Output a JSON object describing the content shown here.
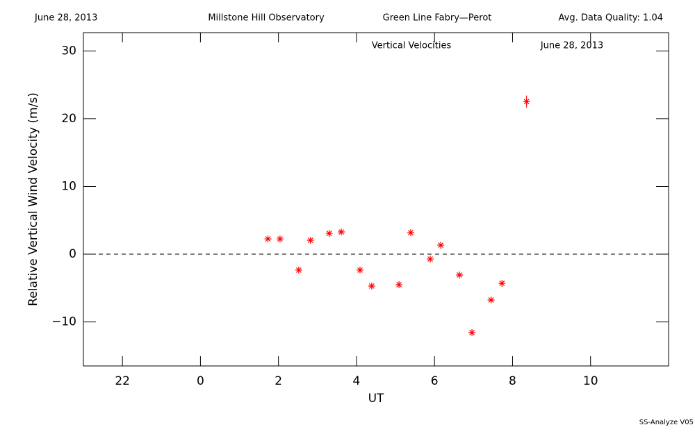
{
  "chart_data": {
    "type": "scatter",
    "header": [
      "June 28, 2013",
      "Millstone Hill Observatory",
      "Green Line Fabry—Perot",
      "Avg. Data Quality: 1.04"
    ],
    "title": "Vertical Velocities",
    "subtitle": "June 28, 2013",
    "xlabel": "UT",
    "ylabel": "Relative Vertical Wind Velocity (m/s)",
    "footer": "SS-Analyze V05",
    "xlim": [
      -3,
      12
    ],
    "ylim": [
      -16.5,
      32.7
    ],
    "xticks": [
      {
        "value": -2,
        "label": "22"
      },
      0,
      2,
      4,
      6,
      8,
      10
    ],
    "yticks": [
      {
        "value": -10,
        "label": "−10"
      },
      0,
      10,
      20,
      30
    ],
    "reference_line": 0,
    "series": [
      {
        "color": "#ff0000",
        "x": [
          1.73,
          2.04,
          2.52,
          2.82,
          3.3,
          3.61,
          4.09,
          4.39,
          5.09,
          5.39,
          5.89,
          6.16,
          6.64,
          6.96,
          7.45,
          7.73,
          8.36
        ],
        "values": [
          2.25,
          2.25,
          -2.35,
          2.05,
          3.07,
          3.28,
          -2.35,
          -4.71,
          -4.5,
          3.17,
          -0.72,
          1.33,
          -3.07,
          -11.57,
          -6.76,
          -4.3,
          22.52
        ],
        "errors": [
          null,
          null,
          null,
          null,
          null,
          null,
          null,
          null,
          null,
          null,
          null,
          null,
          null,
          null,
          null,
          null,
          0.9
        ]
      }
    ]
  }
}
